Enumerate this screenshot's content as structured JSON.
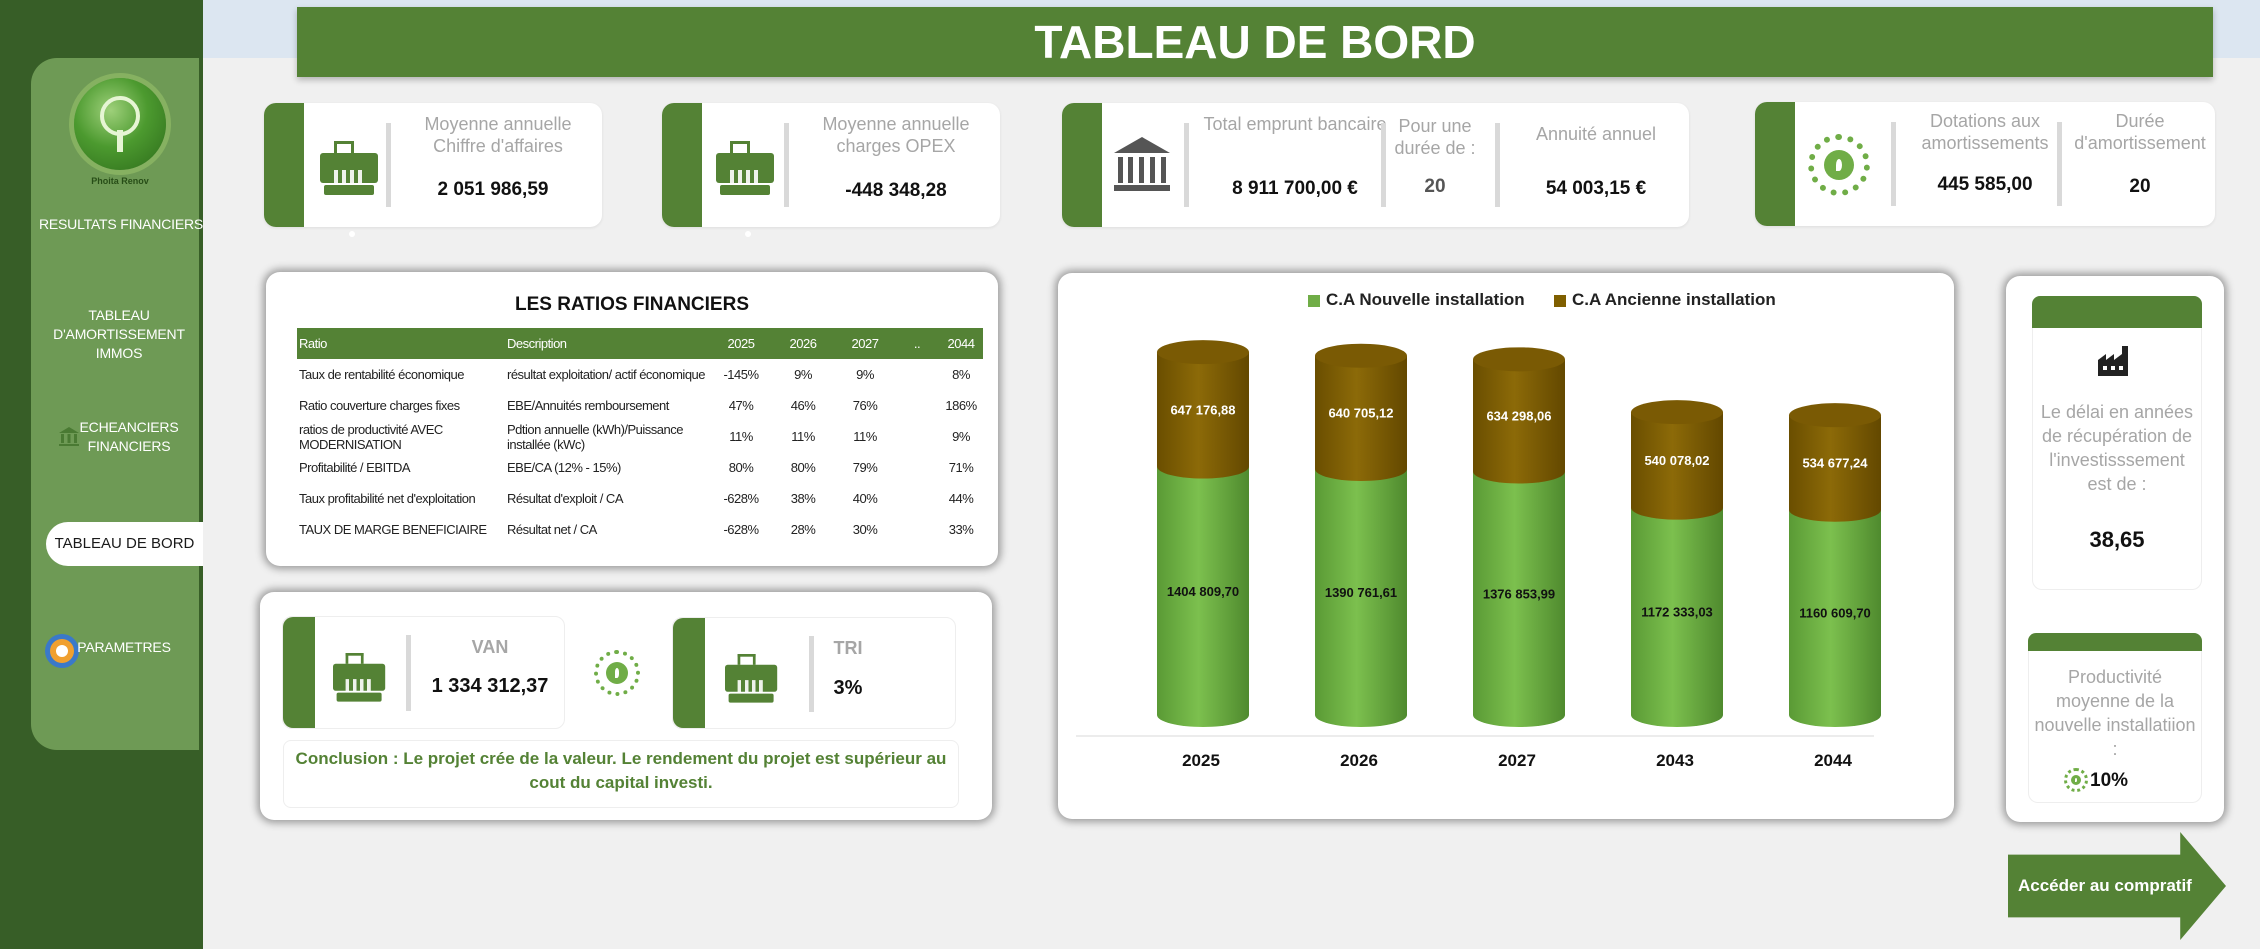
{
  "header": {
    "title": "TABLEAU DE BORD"
  },
  "sidebar": {
    "logo_text": "Phoita Renov",
    "items": [
      {
        "label": "RESULTATS FINANCIERS"
      },
      {
        "label": "TABLEAU D'AMORTISSEMENT IMMOS"
      },
      {
        "label": "ECHEANCIERS FINANCIERS"
      },
      {
        "label": "TABLEAU DE BORD"
      },
      {
        "label": "PARAMETRES"
      }
    ]
  },
  "kpis": {
    "ca": {
      "label": "Moyenne annuelle Chiffre d'affaires",
      "value": "2 051 986,59"
    },
    "opex": {
      "label": "Moyenne annuelle charges OPEX",
      "value": "-448 348,28"
    },
    "emprunt": {
      "total_label": "Total emprunt bancaire",
      "total_value": "8 911 700,00 €",
      "duree_label": "Pour une durée de :",
      "duree_value": "20",
      "annuite_label": "Annuité annuel",
      "annuite_value": "54 003,15 €"
    },
    "amort": {
      "dot_label": "Dotations aux amortissements",
      "dot_value": "445 585,00",
      "duree_label": "Durée d'amortissement",
      "duree_value": "20"
    }
  },
  "ratios": {
    "title": "LES RATIOS FINANCIERS",
    "headers": [
      "Ratio",
      "Description",
      "2025",
      "2026",
      "2027",
      "..",
      "2044"
    ],
    "rows": [
      [
        "Taux de rentabilité économique",
        "résultat exploitation/ actif économique",
        "-145%",
        "9%",
        "9%",
        "",
        "8%"
      ],
      [
        "Ratio couverture charges fixes",
        "EBE/Annuités remboursement",
        "47%",
        "46%",
        "76%",
        "",
        "186%"
      ],
      [
        "ratios de productivité AVEC MODERNISATION",
        "Pdtion annuelle (kWh)/Puissance installée (kWc)",
        "11%",
        "11%",
        "11%",
        "",
        "9%"
      ],
      [
        "Profitabilité / EBITDA",
        "EBE/CA (12% - 15%)",
        "80%",
        "80%",
        "79%",
        "",
        "71%"
      ],
      [
        "Taux profitabilité net d'exploitation",
        "Résultat d'exploit / CA",
        "-628%",
        "38%",
        "40%",
        "",
        "44%"
      ],
      [
        "TAUX DE MARGE BENEFICIAIRE",
        "Résultat net / CA",
        "-628%",
        "28%",
        "30%",
        "",
        "33%"
      ]
    ]
  },
  "investment": {
    "van_label": "VAN",
    "van_value": "1 334 312,37",
    "tri_label": "TRI",
    "tri_value": "3%",
    "conclusion": "Conclusion : Le projet crée de la valeur. Le rendement du projet est supérieur au cout du capital investi."
  },
  "chart_data": {
    "type": "bar",
    "stacked": true,
    "categories": [
      "2025",
      "2026",
      "2027",
      "2043",
      "2044"
    ],
    "series": [
      {
        "name": "C.A Nouvelle installation",
        "values": [
          1404809.7,
          1390761.61,
          1376853.99,
          1172333.03,
          1160609.7
        ],
        "labels": [
          "1404 809,70",
          "1390 761,61",
          "1376 853,99",
          "1172 333,03",
          "1160 609,70"
        ],
        "color": "#70ad47"
      },
      {
        "name": "C.A Ancienne installation",
        "values": [
          647176.88,
          640705.12,
          634298.06,
          540078.02,
          534677.24
        ],
        "labels": [
          "647 176,88",
          "640 705,12",
          "634 298,06",
          "540 078,02",
          "534 677,24"
        ],
        "color": "#7f5f00"
      }
    ],
    "legend": "top",
    "grid": false
  },
  "payback": {
    "text": "Le délai en années de récupération de l'investisssement est de :",
    "value": "38,65"
  },
  "productivity": {
    "text": "Productivité moyenne de la nouvelle installatiion :",
    "value": "10%"
  },
  "nav": {
    "compare_label": "Accéder au compratif"
  },
  "colors": {
    "primary": "#548235",
    "light_green": "#70ad47",
    "brown": "#7f5f00",
    "rail": "#375e27"
  }
}
